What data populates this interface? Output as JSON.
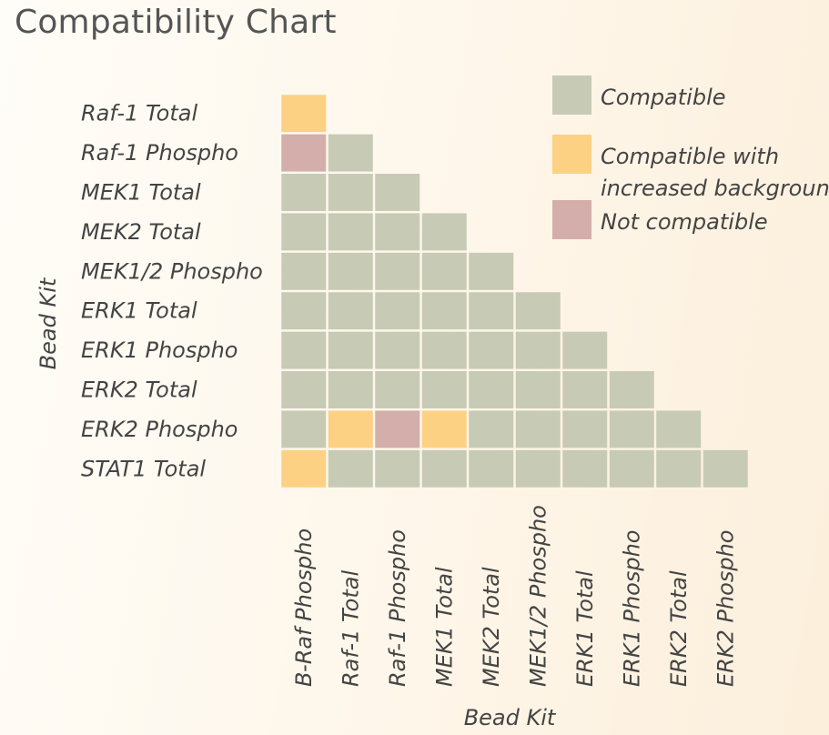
{
  "chart_data": {
    "type": "heatmap",
    "title": "Compatibility Chart",
    "xlabel": "Bead Kit",
    "ylabel": "Bead Kit",
    "rows": [
      "Raf-1 Total",
      "Raf-1 Phospho",
      "MEK1 Total",
      "MEK2 Total",
      "MEK1/2 Phospho",
      "ERK1 Total",
      "ERK1 Phospho",
      "ERK2 Total",
      "ERK2 Phospho",
      "STAT1 Total"
    ],
    "columns": [
      "B-Raf Phospho",
      "Raf-1 Total",
      "Raf-1 Phospho",
      "MEK1 Total",
      "MEK2 Total",
      "MEK1/2 Phospho",
      "ERK1 Total",
      "ERK1 Phospho",
      "ERK2 Total",
      "ERK2 Phospho"
    ],
    "cells": [
      [
        "I"
      ],
      [
        "N",
        "C"
      ],
      [
        "C",
        "C",
        "C"
      ],
      [
        "C",
        "C",
        "C",
        "C"
      ],
      [
        "C",
        "C",
        "C",
        "C",
        "C"
      ],
      [
        "C",
        "C",
        "C",
        "C",
        "C",
        "C"
      ],
      [
        "C",
        "C",
        "C",
        "C",
        "C",
        "C",
        "C"
      ],
      [
        "C",
        "C",
        "C",
        "C",
        "C",
        "C",
        "C",
        "C"
      ],
      [
        "C",
        "I",
        "N",
        "I",
        "C",
        "C",
        "C",
        "C",
        "C"
      ],
      [
        "I",
        "C",
        "C",
        "C",
        "C",
        "C",
        "C",
        "C",
        "C",
        "C"
      ]
    ],
    "legend": {
      "position": "top-right",
      "items": [
        {
          "key": "C",
          "lines": [
            "Compatible"
          ],
          "color": "#c7cab4"
        },
        {
          "key": "I",
          "lines": [
            "Compatible with",
            "increased background"
          ],
          "color": "#fcd184"
        },
        {
          "key": "N",
          "lines": [
            "Not compatible"
          ],
          "color": "#d4aeaa"
        }
      ]
    },
    "grid": false
  }
}
